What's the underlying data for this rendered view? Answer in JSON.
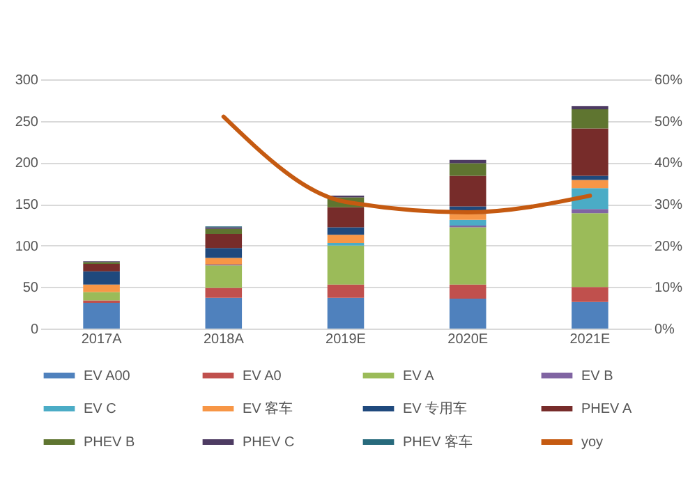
{
  "chart_data": {
    "type": "bar",
    "stacked": true,
    "categories": [
      "2017A",
      "2018A",
      "2019E",
      "2020E",
      "2021E"
    ],
    "series": [
      {
        "name": "EV A00",
        "color": "#4f81bd",
        "values": [
          31,
          37,
          37,
          36,
          32
        ]
      },
      {
        "name": "EV A0",
        "color": "#c0504d",
        "values": [
          3,
          12,
          16,
          17,
          18
        ]
      },
      {
        "name": "EV A",
        "color": "#9bbb59",
        "values": [
          10,
          27,
          47,
          69,
          89
        ]
      },
      {
        "name": "EV B",
        "color": "#8064a2",
        "values": [
          0,
          1,
          0,
          2,
          5
        ]
      },
      {
        "name": "EV C",
        "color": "#4bacc6",
        "values": [
          0,
          0,
          3,
          7,
          25
        ]
      },
      {
        "name": "EV 客车",
        "color": "#f79646",
        "values": [
          9,
          8,
          10,
          7,
          10
        ]
      },
      {
        "name": "EV 专用车",
        "color": "#1f497d",
        "values": [
          16,
          12,
          9,
          9,
          5
        ]
      },
      {
        "name": "PHEV A",
        "color": "#772c2a",
        "values": [
          9,
          17,
          24,
          37,
          57
        ]
      },
      {
        "name": "PHEV B",
        "color": "#5f7530",
        "values": [
          2,
          6,
          12,
          15,
          23
        ]
      },
      {
        "name": "PHEV C",
        "color": "#4d3b62",
        "values": [
          1,
          2,
          2,
          4,
          4
        ]
      },
      {
        "name": "PHEV 客车",
        "color": "#276a7c",
        "values": [
          0,
          1,
          0,
          0,
          0
        ]
      },
      {
        "name": "yoy",
        "color": "#c55a11",
        "type": "line",
        "axis": "y2",
        "values": [
          null,
          51,
          30.5,
          28,
          32
        ]
      }
    ],
    "ylim": [
      0,
      300
    ],
    "yticks": [
      0,
      50,
      100,
      150,
      200,
      250,
      300
    ],
    "y2lim": [
      0,
      60
    ],
    "y2ticks": [
      {
        "value": 0,
        "label": "0%"
      },
      {
        "value": 10,
        "label": "10%"
      },
      {
        "value": 20,
        "label": "20%"
      },
      {
        "value": 30,
        "label": "30%"
      },
      {
        "value": 40,
        "label": "40%"
      },
      {
        "value": 50,
        "label": "50%"
      },
      {
        "value": 60,
        "label": "60%"
      }
    ],
    "grid": "y",
    "legend": "bottom"
  }
}
